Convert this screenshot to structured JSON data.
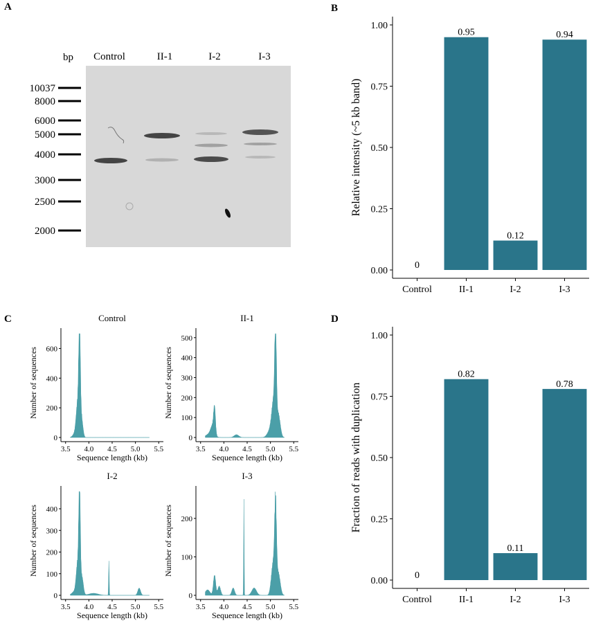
{
  "panels": {
    "A": "A",
    "B": "B",
    "C": "C",
    "D": "D"
  },
  "gel": {
    "bp_label": "bp",
    "lanes": [
      "Control",
      "II-1",
      "I-2",
      "I-3"
    ],
    "markers": [
      "10037",
      "8000",
      "6000",
      "5000",
      "4000",
      "3000",
      "2500",
      "2000"
    ],
    "background": "#d8d8d8",
    "band_color": "#3c3c3c"
  },
  "chart_data": [
    {
      "id": "B",
      "type": "bar",
      "categories": [
        "Control",
        "II-1",
        "I-2",
        "I-3"
      ],
      "values": [
        0,
        0.95,
        0.12,
        0.94
      ],
      "value_labels": [
        "0",
        "0.95",
        "0.12",
        "0.94"
      ],
      "title": "",
      "xlabel": "",
      "ylabel": "Relative intensity (~5 kb band)",
      "ylim": [
        0,
        1.0
      ],
      "yticks": [
        "0.00",
        "0.25",
        "0.50",
        "0.75",
        "1.00"
      ],
      "grid": false,
      "color": "#2a758a"
    },
    {
      "id": "C",
      "type": "area",
      "xlabel": "Sequence length (kb)",
      "ylabel": "Number of sequences",
      "xticks": [
        "3.5",
        "4.0",
        "4.5",
        "5.0",
        "5.5"
      ],
      "xlim": [
        3.4,
        5.6
      ],
      "color": "#4b9fa8",
      "subplots": [
        {
          "title": "Control",
          "ymax": 700,
          "yticks": [
            "0",
            "200",
            "400",
            "600"
          ],
          "peaks": [
            [
              3.8,
              670,
              0.018
            ],
            [
              3.76,
              220,
              0.03
            ],
            [
              3.84,
              140,
              0.03
            ],
            [
              3.72,
              40,
              0.05
            ]
          ]
        },
        {
          "title": "II-1",
          "ymax": 520,
          "yticks": [
            "0",
            "100",
            "200",
            "300",
            "400",
            "500"
          ],
          "peaks": [
            [
              5.11,
              490,
              0.018
            ],
            [
              5.07,
              180,
              0.04
            ],
            [
              5.17,
              120,
              0.04
            ],
            [
              3.8,
              130,
              0.02
            ],
            [
              3.76,
              50,
              0.04
            ],
            [
              4.27,
              15,
              0.05
            ],
            [
              5.0,
              40,
              0.06
            ],
            [
              3.7,
              20,
              0.08
            ]
          ]
        },
        {
          "title": "I-2",
          "ymax": 480,
          "yticks": [
            "0",
            "100",
            "200",
            "300",
            "400"
          ],
          "peaks": [
            [
              3.8,
              470,
              0.017
            ],
            [
              3.76,
              150,
              0.03
            ],
            [
              3.85,
              90,
              0.03
            ],
            [
              4.43,
              165,
              0.006
            ],
            [
              5.08,
              35,
              0.03
            ],
            [
              4.1,
              10,
              0.1
            ],
            [
              3.7,
              20,
              0.06
            ]
          ]
        },
        {
          "title": "I-3",
          "ymax": 270,
          "yticks": [
            "0",
            "100",
            "200"
          ],
          "peaks": [
            [
              4.43,
              260,
              0.005
            ],
            [
              5.11,
              215,
              0.02
            ],
            [
              5.06,
              90,
              0.04
            ],
            [
              5.17,
              60,
              0.04
            ],
            [
              3.8,
              55,
              0.025
            ],
            [
              3.9,
              25,
              0.03
            ],
            [
              4.2,
              20,
              0.03
            ],
            [
              4.65,
              20,
              0.05
            ],
            [
              3.65,
              15,
              0.05
            ]
          ]
        }
      ]
    },
    {
      "id": "D",
      "type": "bar",
      "categories": [
        "Control",
        "II-1",
        "I-2",
        "I-3"
      ],
      "values": [
        0,
        0.82,
        0.11,
        0.78
      ],
      "value_labels": [
        "0",
        "0.82",
        "0.11",
        "0.78"
      ],
      "title": "",
      "xlabel": "",
      "ylabel": "Fraction of reads with duplication",
      "ylim": [
        0,
        1.0
      ],
      "yticks": [
        "0.00",
        "0.25",
        "0.50",
        "0.75",
        "1.00"
      ],
      "grid": false,
      "color": "#2a758a"
    }
  ]
}
